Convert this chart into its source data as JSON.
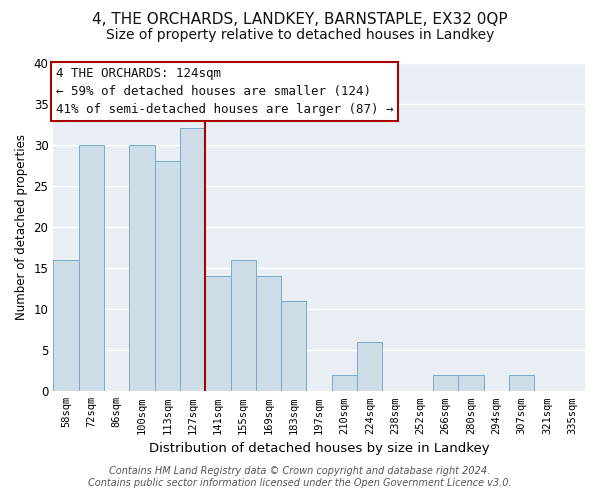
{
  "title": "4, THE ORCHARDS, LANDKEY, BARNSTAPLE, EX32 0QP",
  "subtitle": "Size of property relative to detached houses in Landkey",
  "xlabel": "Distribution of detached houses by size in Landkey",
  "ylabel": "Number of detached properties",
  "bar_color": "#ccdde8",
  "bar_edge_color": "#7aaac8",
  "vline_color": "#aa0000",
  "categories": [
    "58sqm",
    "72sqm",
    "86sqm",
    "100sqm",
    "113sqm",
    "127sqm",
    "141sqm",
    "155sqm",
    "169sqm",
    "183sqm",
    "197sqm",
    "210sqm",
    "224sqm",
    "238sqm",
    "252sqm",
    "266sqm",
    "280sqm",
    "294sqm",
    "307sqm",
    "321sqm",
    "335sqm"
  ],
  "values": [
    16,
    30,
    0,
    30,
    28,
    32,
    14,
    16,
    14,
    11,
    0,
    2,
    6,
    0,
    0,
    2,
    2,
    0,
    2,
    0,
    0
  ],
  "ylim": [
    0,
    40
  ],
  "yticks": [
    0,
    5,
    10,
    15,
    20,
    25,
    30,
    35,
    40
  ],
  "annotation_text": "4 THE ORCHARDS: 124sqm\n← 59% of detached houses are smaller (124)\n41% of semi-detached houses are larger (87) →",
  "annotation_box_color": "#ffffff",
  "annotation_box_edge_color": "#aa0000",
  "footer_line1": "Contains HM Land Registry data © Crown copyright and database right 2024.",
  "footer_line2": "Contains public sector information licensed under the Open Government Licence v3.0.",
  "background_color": "#ffffff",
  "plot_bg_color": "#e8eef4",
  "grid_color": "#ffffff",
  "title_fontsize": 11,
  "subtitle_fontsize": 10,
  "annotation_fontsize": 9,
  "footer_fontsize": 7,
  "vline_bar_index": 5
}
